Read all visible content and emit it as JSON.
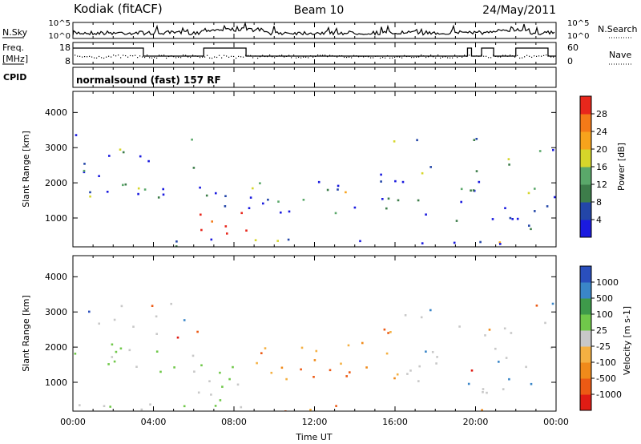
{
  "header": {
    "station": "Kodiak (fitACF)",
    "beam": "Beam 10",
    "date": "24/May/2011"
  },
  "noise_panel": {
    "left_label": "N.Sky",
    "right_label": "N.Search",
    "ytick_top_left": "10^5",
    "ytick_bottom_left": "10^0",
    "ytick_top_right": "10^5",
    "ytick_bottom_right": "10^0"
  },
  "freq_panel": {
    "left_label_line1": "Freq.",
    "left_label_line2": "[MHz]",
    "right_label": "Nave",
    "ytick_top_left": "18",
    "ytick_bottom_left": "8",
    "ytick_top_right": "60",
    "ytick_bottom_right": "0"
  },
  "cpid_panel": {
    "label": "CPID",
    "value": "normalsound (fast) 157 RF"
  },
  "xaxis": {
    "label": "Time UT",
    "ticks": [
      "00:00",
      "04:00",
      "08:00",
      "12:00",
      "16:00",
      "20:00",
      "00:00"
    ]
  },
  "chart_data": [
    {
      "type": "heatmap",
      "title": "",
      "xlabel": "Time UT",
      "ylabel": "Slant Range [km]",
      "xlim": [
        0,
        24
      ],
      "ylim": [
        180,
        4600
      ],
      "yticks": [
        "1000",
        "2000",
        "3000",
        "4000"
      ],
      "colorbar": {
        "label": "Power [dB]",
        "ticks": [
          "4",
          "8",
          "12",
          "16",
          "20",
          "24",
          "28"
        ],
        "colors": [
          "#1a1adf",
          "#2346a8",
          "#3d7d4a",
          "#5aa86a",
          "#d6d62a",
          "#f7a31c",
          "#f47a18",
          "#e8271c"
        ]
      }
    },
    {
      "type": "heatmap",
      "title": "",
      "xlabel": "Time UT",
      "ylabel": "Slant Range [km]",
      "xlim": [
        0,
        24
      ],
      "ylim": [
        180,
        4600
      ],
      "yticks": [
        "1000",
        "2000",
        "3000",
        "4000"
      ],
      "colorbar": {
        "label": "Velocity [m s-1]",
        "ticks": [
          "1000",
          "500",
          "100",
          "25",
          "-25",
          "-100",
          "-500",
          "-1000"
        ],
        "colors": [
          "#2a4fbd",
          "#3a86c8",
          "#3e9a4a",
          "#70c84a",
          "#c8c8c8",
          "#f4b042",
          "#f08a1a",
          "#ec5a14",
          "#e01c14"
        ]
      }
    }
  ]
}
